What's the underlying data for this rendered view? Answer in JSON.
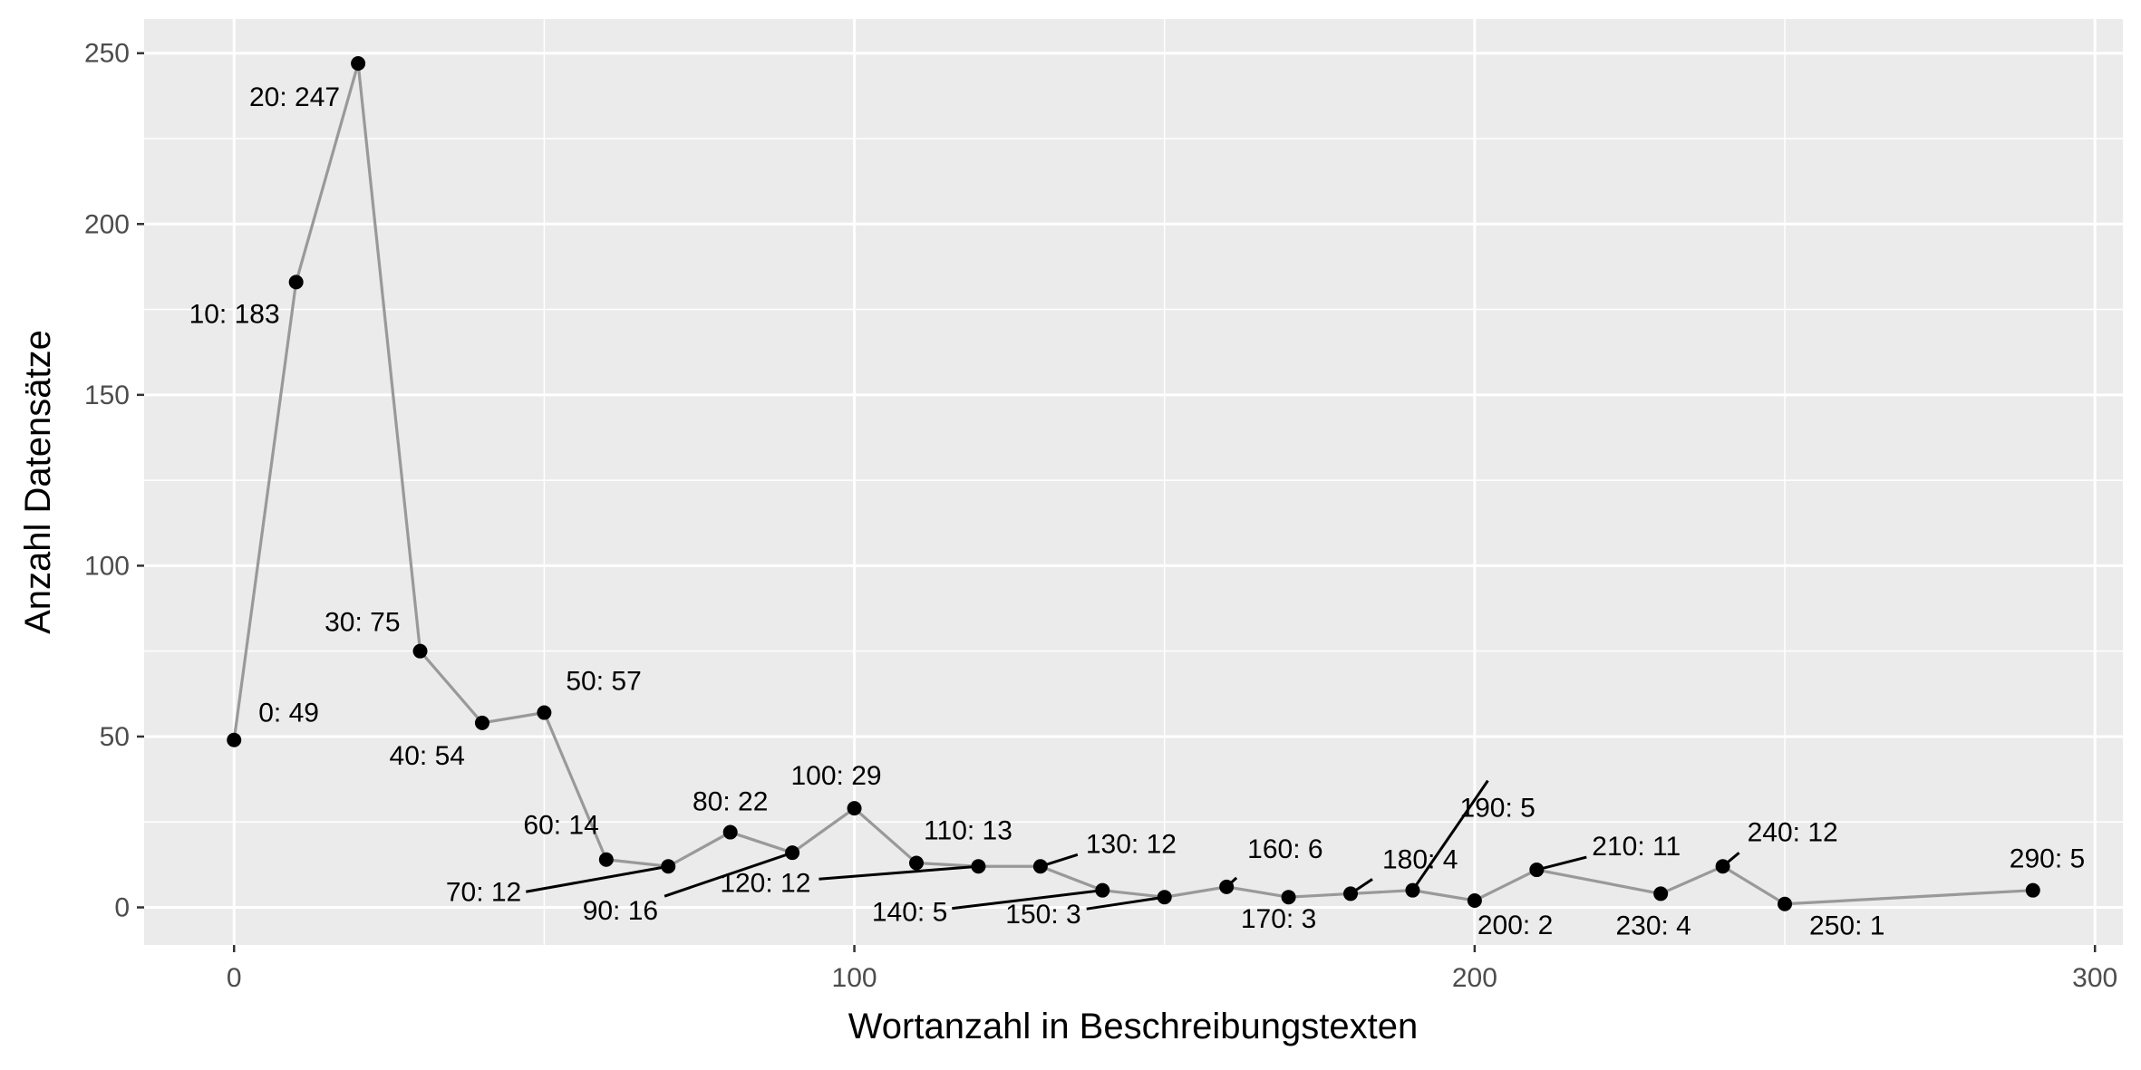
{
  "chart_data": {
    "type": "line",
    "xlabel": "Wortanzahl in Beschreibungstexten",
    "ylabel": "Anzahl Datensätze",
    "xlim": [
      -14.5,
      304.5
    ],
    "ylim": [
      -11,
      260
    ],
    "x_ticks": [
      0,
      100,
      200,
      300
    ],
    "y_ticks": [
      0,
      50,
      100,
      150,
      200,
      250
    ],
    "x_tick_labels": [
      "0",
      "100",
      "200",
      "300"
    ],
    "y_tick_labels": [
      "0",
      "50",
      "100",
      "150",
      "200",
      "250"
    ],
    "grid": true,
    "legend": "none",
    "colors": {
      "panel": "#ebebeb",
      "grid": "#ffffff",
      "line": "#999999",
      "point": "#000000",
      "axis_text": "#4d4d4d"
    },
    "points": [
      {
        "x": 0,
        "y": 49,
        "label": "0: 49"
      },
      {
        "x": 10,
        "y": 183,
        "label": "10: 183"
      },
      {
        "x": 20,
        "y": 247,
        "label": "20: 247"
      },
      {
        "x": 30,
        "y": 75,
        "label": "30: 75"
      },
      {
        "x": 40,
        "y": 54,
        "label": "40: 54"
      },
      {
        "x": 50,
        "y": 57,
        "label": "50: 57"
      },
      {
        "x": 60,
        "y": 14,
        "label": "60: 14"
      },
      {
        "x": 70,
        "y": 12,
        "label": "70: 12"
      },
      {
        "x": 80,
        "y": 22,
        "label": "80: 22"
      },
      {
        "x": 90,
        "y": 16,
        "label": "90: 16"
      },
      {
        "x": 100,
        "y": 29,
        "label": "100: 29"
      },
      {
        "x": 110,
        "y": 13,
        "label": "110: 13"
      },
      {
        "x": 120,
        "y": 12,
        "label": "120: 12"
      },
      {
        "x": 130,
        "y": 12,
        "label": "130: 12"
      },
      {
        "x": 140,
        "y": 5,
        "label": "140: 5"
      },
      {
        "x": 150,
        "y": 3,
        "label": "150: 3"
      },
      {
        "x": 160,
        "y": 6,
        "label": "160: 6"
      },
      {
        "x": 170,
        "y": 3,
        "label": "170: 3"
      },
      {
        "x": 180,
        "y": 4,
        "label": "180: 4"
      },
      {
        "x": 190,
        "y": 5,
        "label": "190: 5"
      },
      {
        "x": 200,
        "y": 2,
        "label": "200: 2"
      },
      {
        "x": 210,
        "y": 11,
        "label": "210: 11"
      },
      {
        "x": 230,
        "y": 4,
        "label": "230: 4"
      },
      {
        "x": 240,
        "y": 12,
        "label": "240: 12"
      },
      {
        "x": 250,
        "y": 1,
        "label": "250: 1"
      },
      {
        "x": 290,
        "y": 5,
        "label": "290: 5"
      }
    ]
  }
}
